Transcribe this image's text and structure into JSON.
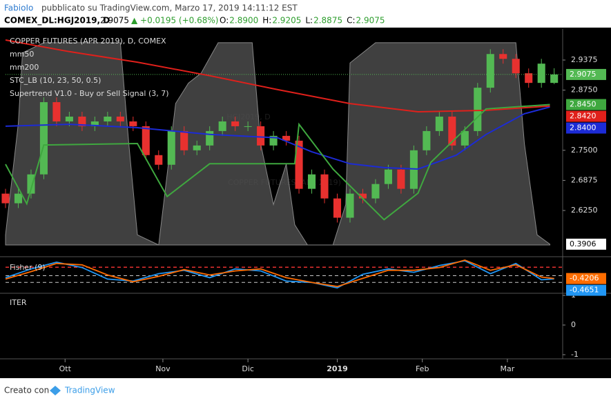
{
  "header": {
    "author": "FabioIo",
    "published": "pubblicato su TradingView.com, Marzo 17, 2019 14:11:12 EST",
    "symbol": "COMEX_DL:HGJ2019, D",
    "price": "2.9075",
    "change": "▲ +0.0195 (+0.68%)",
    "ohlc": [
      {
        "label": "O:",
        "value": "2.8900"
      },
      {
        "label": "H:",
        "value": "2.9205"
      },
      {
        "label": "L:",
        "value": "2.8875"
      },
      {
        "label": "C:",
        "value": "2.9075"
      }
    ]
  },
  "chart_data": [
    {
      "type": "candlestick",
      "title": "COPPER FUTURES (APR 2019), D, COMEX",
      "watermark": "HGJ2019, D",
      "watermark_name": "COPPER FUTURES (APR 2019)",
      "up_color": "#53b953",
      "down_color": "#e8312f",
      "last_label": "2.9075",
      "x": [
        0,
        3,
        6,
        9,
        12,
        15,
        18,
        21,
        24,
        27,
        30,
        33,
        36,
        39,
        42,
        45,
        48,
        51,
        54,
        57,
        60,
        63,
        66,
        69,
        72,
        75,
        78,
        81,
        84,
        87,
        90,
        93,
        96,
        99,
        102,
        105,
        108,
        111,
        114,
        117,
        120,
        123,
        126,
        129
      ],
      "open": [
        2.66,
        2.64,
        2.66,
        2.7,
        2.85,
        2.81,
        2.82,
        2.8,
        2.81,
        2.82,
        2.81,
        2.8,
        2.74,
        2.72,
        2.79,
        2.75,
        2.76,
        2.79,
        2.81,
        2.8,
        2.8,
        2.76,
        2.78,
        2.77,
        2.67,
        2.7,
        2.65,
        2.61,
        2.66,
        2.65,
        2.68,
        2.71,
        2.67,
        2.75,
        2.79,
        2.82,
        2.76,
        2.79,
        2.88,
        2.95,
        2.94,
        2.91,
        2.89,
        2.89
      ],
      "high": [
        2.67,
        2.67,
        2.71,
        2.86,
        2.86,
        2.83,
        2.83,
        2.82,
        2.83,
        2.83,
        2.82,
        2.81,
        2.75,
        2.8,
        2.8,
        2.77,
        2.8,
        2.82,
        2.82,
        2.81,
        2.81,
        2.79,
        2.79,
        2.78,
        2.71,
        2.71,
        2.66,
        2.67,
        2.67,
        2.69,
        2.72,
        2.72,
        2.76,
        2.8,
        2.83,
        2.83,
        2.8,
        2.89,
        2.96,
        2.96,
        2.95,
        2.92,
        2.94,
        2.9205
      ],
      "low": [
        2.63,
        2.63,
        2.65,
        2.69,
        2.8,
        2.8,
        2.79,
        2.79,
        2.8,
        2.8,
        2.79,
        2.73,
        2.71,
        2.71,
        2.74,
        2.74,
        2.75,
        2.78,
        2.79,
        2.79,
        2.75,
        2.75,
        2.76,
        2.66,
        2.66,
        2.64,
        2.6,
        2.6,
        2.64,
        2.64,
        2.67,
        2.66,
        2.66,
        2.74,
        2.78,
        2.75,
        2.75,
        2.78,
        2.87,
        2.93,
        2.9,
        2.88,
        2.88,
        2.8875
      ],
      "close": [
        2.64,
        2.66,
        2.7,
        2.85,
        2.81,
        2.82,
        2.8,
        2.81,
        2.82,
        2.81,
        2.8,
        2.74,
        2.72,
        2.79,
        2.75,
        2.76,
        2.79,
        2.81,
        2.8,
        2.8,
        2.76,
        2.78,
        2.77,
        2.67,
        2.7,
        2.65,
        2.61,
        2.66,
        2.65,
        2.68,
        2.71,
        2.67,
        2.75,
        2.79,
        2.82,
        2.76,
        2.79,
        2.88,
        2.95,
        2.94,
        2.91,
        2.89,
        2.93,
        2.9075
      ],
      "xlim": [
        0,
        131
      ],
      "xticks": [
        {
          "value": 14,
          "label": "Ott"
        },
        {
          "value": 37,
          "label": "Nov"
        },
        {
          "value": 57,
          "label": "Dic"
        },
        {
          "value": 78,
          "label": "2019"
        },
        {
          "value": 98,
          "label": "Feb"
        },
        {
          "value": 118,
          "label": "Mar"
        }
      ],
      "ylim": [
        2.529,
        3.002
      ],
      "yticks": [
        {
          "value": 2.625,
          "label": "2.6250"
        },
        {
          "value": 2.6875,
          "label": "2.6875"
        },
        {
          "value": 2.75,
          "label": "2.7500"
        },
        {
          "value": 2.875,
          "label": "2.8750"
        },
        {
          "value": 2.9375,
          "label": "2.9375"
        }
      ],
      "y2lim": [
        -5.8,
        106.8
      ],
      "series": [
        {
          "name": "mm50",
          "color": "#1c2bd6",
          "last_label": "2.8400",
          "x": [
            0,
            15,
            31,
            48,
            64,
            72,
            81,
            89,
            97,
            106,
            113,
            122,
            128
          ],
          "values": [
            2.8,
            2.804,
            2.797,
            2.783,
            2.776,
            2.747,
            2.722,
            2.714,
            2.711,
            2.74,
            2.783,
            2.826,
            2.84
          ]
        },
        {
          "name": "mm200",
          "color": "#e0201b",
          "last_label": "2.8420",
          "x": [
            0,
            15,
            31,
            48,
            64,
            81,
            97,
            113,
            128
          ],
          "values": [
            2.979,
            2.955,
            2.933,
            2.905,
            2.876,
            2.847,
            2.83,
            2.833,
            2.842
          ]
        },
        {
          "name": "STC_LB (10, 23, 50, 0.5)",
          "color": "#555555",
          "axis": "y2",
          "area": true,
          "last_label": "0.3906",
          "x": [
            0,
            3,
            4,
            9,
            27,
            29,
            31,
            36,
            40,
            43,
            46,
            50,
            58,
            60,
            63,
            66,
            68,
            71,
            77,
            80,
            81,
            87,
            120,
            122,
            125,
            128
          ],
          "values": [
            5,
            60,
            95,
            100,
            100,
            50,
            5,
            0,
            70,
            80,
            85,
            100,
            100,
            50,
            20,
            40,
            10,
            0,
            0,
            20,
            90,
            100,
            100,
            50,
            5,
            0.3906
          ]
        },
        {
          "name": "Supertrend V1.0 - Buy or Sell Signal (3, 7)",
          "color": "#3fa83f",
          "last_label": "2.8450",
          "x": [
            0,
            5,
            9,
            31,
            38,
            48,
            68,
            69,
            77,
            89,
            97,
            100,
            113,
            128
          ],
          "values": [
            2.721,
            2.639,
            2.761,
            2.764,
            2.654,
            2.722,
            2.722,
            2.804,
            2.711,
            2.606,
            2.661,
            2.725,
            2.836,
            2.845
          ]
        }
      ]
    },
    {
      "type": "line",
      "title": "Fisher (9)",
      "xlim": [
        0,
        131
      ],
      "ylim": [
        -2.6,
        2.6
      ],
      "levels": [
        1.25,
        0,
        -1
      ],
      "series": [
        {
          "color": "#2196f3",
          "last_label": "-0.4651",
          "x": [
            0,
            6,
            12,
            18,
            24,
            30,
            36,
            42,
            48,
            54,
            60,
            66,
            72,
            78,
            84,
            90,
            96,
            102,
            108,
            114,
            120,
            126,
            129
          ],
          "values": [
            -0.3,
            1.0,
            2.0,
            1.2,
            -0.5,
            -0.8,
            0.3,
            0.8,
            -0.3,
            1.0,
            0.7,
            -0.8,
            -1.0,
            -1.8,
            0.2,
            1.0,
            0.5,
            1.5,
            2.2,
            0.3,
            1.8,
            -0.6,
            -0.4651
          ]
        },
        {
          "color": "#ff6d00",
          "last_label": "-0.4206",
          "x": [
            0,
            6,
            12,
            18,
            24,
            30,
            36,
            42,
            48,
            54,
            60,
            66,
            72,
            78,
            84,
            90,
            96,
            102,
            108,
            114,
            120,
            126,
            129
          ],
          "values": [
            -0.5,
            0.6,
            1.8,
            1.6,
            0.1,
            -0.9,
            -0.1,
            0.9,
            0.1,
            0.7,
            1.0,
            -0.3,
            -1.0,
            -1.6,
            -0.4,
            0.8,
            0.8,
            1.2,
            2.3,
            0.8,
            1.6,
            -0.2,
            -0.4206
          ]
        }
      ]
    },
    {
      "type": "line",
      "title": "ITER",
      "xlim": [
        0,
        131
      ],
      "ylim": [
        -1.14,
        1.07
      ],
      "yticks": [
        1,
        0,
        -1
      ],
      "series": []
    }
  ],
  "footer": {
    "text": "Creato con",
    "brand": "TradingView"
  }
}
